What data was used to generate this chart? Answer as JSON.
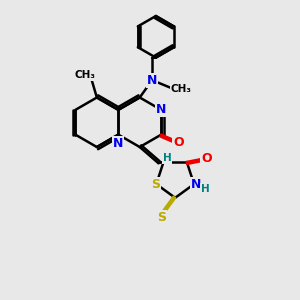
{
  "bg_color": "#e8e8e8",
  "line_color": "#000000",
  "bond_width": 1.8,
  "atom_colors": {
    "N": "#0000ee",
    "O": "#ee0000",
    "S": "#bbaa00",
    "H": "#008080",
    "C": "#000000"
  },
  "font_size_atom": 9,
  "font_size_small": 7.5
}
